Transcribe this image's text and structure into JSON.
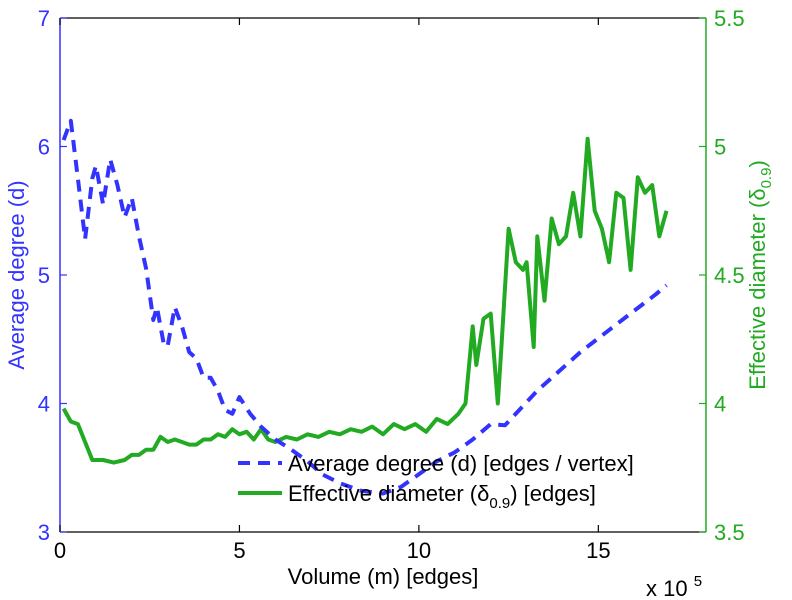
{
  "chart_data": {
    "type": "line",
    "xlabel": "Volume (m) [edges]",
    "x_multiplier": "x 10",
    "x_multiplier_exp": "5",
    "xlim": [
      0,
      18
    ],
    "x_ticks": [
      0,
      5,
      10,
      15
    ],
    "y_left": {
      "label": "Average degree (d)",
      "lim": [
        3,
        7
      ],
      "ticks": [
        3,
        4,
        5,
        6,
        7
      ],
      "color": "#3333ff"
    },
    "y_right": {
      "label_main": "Effective diameter (δ",
      "label_sub": "0.9",
      "label_close": ")",
      "lim": [
        3.5,
        5.5
      ],
      "ticks": [
        "3.5",
        "4",
        "4.5",
        "5",
        "5.5"
      ],
      "color": "#22aa22"
    },
    "legend": {
      "placement": "bottom-right",
      "items": [
        {
          "text": "Average degree (d) [edges / vertex]",
          "style": "dashed",
          "color": "#3333ff"
        },
        {
          "text_main": "Effective diameter (δ",
          "text_sub": "0.9",
          "text_close": ") [edges]",
          "style": "solid",
          "color": "#22aa22"
        }
      ]
    },
    "series": [
      {
        "name": "Average degree (d) [edges / vertex]",
        "axis": "left",
        "style": "dashed",
        "color": "#3333ff",
        "x": [
          0.1,
          0.3,
          0.5,
          0.7,
          0.9,
          1.0,
          1.2,
          1.4,
          1.6,
          1.8,
          2.0,
          2.2,
          2.4,
          2.6,
          2.7,
          2.9,
          3.0,
          3.2,
          3.4,
          3.6,
          3.8,
          4.0,
          4.2,
          4.4,
          4.6,
          4.8,
          5.0,
          5.3,
          5.6,
          6.0,
          6.4,
          6.9,
          7.3,
          7.8,
          8.4,
          9.0,
          9.5,
          10.0,
          10.5,
          11.0,
          11.5,
          12.0,
          12.4,
          12.8,
          13.3,
          13.9,
          14.5,
          15.2,
          15.9,
          16.6,
          16.9
        ],
        "y": [
          6.05,
          6.2,
          5.75,
          5.28,
          5.75,
          5.85,
          5.55,
          5.9,
          5.7,
          5.45,
          5.6,
          5.3,
          5.05,
          4.65,
          4.75,
          4.45,
          4.45,
          4.75,
          4.6,
          4.4,
          4.35,
          4.2,
          4.2,
          4.1,
          3.95,
          3.92,
          4.05,
          3.92,
          3.82,
          3.72,
          3.65,
          3.55,
          3.45,
          3.38,
          3.32,
          3.3,
          3.35,
          3.45,
          3.55,
          3.62,
          3.72,
          3.84,
          3.83,
          3.95,
          4.1,
          4.25,
          4.4,
          4.55,
          4.7,
          4.85,
          4.92
        ]
      },
      {
        "name_main": "Effective diameter (δ",
        "name_sub": "0.9",
        "name_close": ") [edges]",
        "axis": "right",
        "style": "solid",
        "color": "#22aa22",
        "x": [
          0.1,
          0.3,
          0.5,
          0.7,
          0.9,
          1.2,
          1.5,
          1.8,
          2.0,
          2.2,
          2.4,
          2.6,
          2.8,
          3.0,
          3.2,
          3.4,
          3.6,
          3.8,
          4.0,
          4.2,
          4.4,
          4.6,
          4.8,
          5.0,
          5.2,
          5.4,
          5.6,
          5.8,
          6.0,
          6.3,
          6.6,
          6.9,
          7.2,
          7.5,
          7.8,
          8.1,
          8.4,
          8.7,
          9.0,
          9.3,
          9.6,
          9.9,
          10.2,
          10.5,
          10.8,
          11.1,
          11.3,
          11.5,
          11.6,
          11.8,
          12.0,
          12.2,
          12.3,
          12.5,
          12.7,
          12.9,
          13.0,
          13.2,
          13.3,
          13.5,
          13.7,
          13.9,
          14.1,
          14.3,
          14.5,
          14.7,
          14.9,
          15.1,
          15.3,
          15.5,
          15.7,
          15.9,
          16.1,
          16.3,
          16.5,
          16.7,
          16.9
        ],
        "y": [
          3.98,
          3.93,
          3.92,
          3.85,
          3.78,
          3.78,
          3.77,
          3.78,
          3.8,
          3.8,
          3.82,
          3.82,
          3.87,
          3.85,
          3.86,
          3.85,
          3.84,
          3.84,
          3.86,
          3.86,
          3.88,
          3.87,
          3.9,
          3.88,
          3.89,
          3.86,
          3.9,
          3.86,
          3.85,
          3.87,
          3.86,
          3.88,
          3.87,
          3.89,
          3.88,
          3.9,
          3.89,
          3.91,
          3.88,
          3.92,
          3.9,
          3.92,
          3.89,
          3.94,
          3.92,
          3.96,
          4.0,
          4.3,
          4.15,
          4.33,
          4.35,
          4.0,
          4.22,
          4.68,
          4.55,
          4.52,
          4.55,
          4.22,
          4.65,
          4.4,
          4.72,
          4.62,
          4.65,
          4.82,
          4.65,
          5.03,
          4.75,
          4.68,
          4.55,
          4.82,
          4.8,
          4.52,
          4.88,
          4.82,
          4.85,
          4.65,
          4.75
        ]
      }
    ]
  }
}
